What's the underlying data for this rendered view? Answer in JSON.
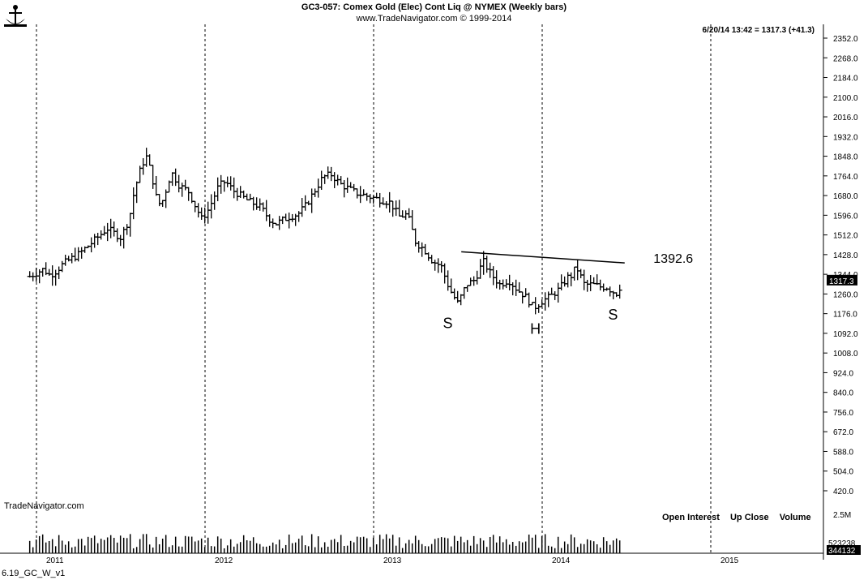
{
  "header": {
    "title": "GC3-057:  Comex Gold (Elec) Cont Liq @ NYMEX  (Weekly bars)",
    "subtitle": "www.TradeNavigator.com © 1999-2014",
    "last_quote": "6/20/14 13:42 = 1317.3 (+41.3)"
  },
  "watermark": "TradeNavigator.com",
  "footer_label": "6.19_GC_W_v1",
  "volume_legend": [
    "Open Interest",
    "Up Close",
    "Volume"
  ],
  "colors": {
    "background": "#ffffff",
    "bars": "#000000",
    "gridline": "#000000"
  },
  "chart_data": {
    "type": "ohlc",
    "timeframe": "Weekly bars",
    "x_axis": {
      "tick_labels": [
        "2011",
        "2012",
        "2013",
        "2014",
        "2015"
      ]
    },
    "y_axis": {
      "position": "right",
      "range": [
        420,
        2352
      ],
      "tick_labels": [
        "2352.0",
        "2268.0",
        "2184.0",
        "2100.0",
        "2016.0",
        "1932.0",
        "1848.0",
        "1764.0",
        "1680.0",
        "1596.0",
        "1512.0",
        "1428.0",
        "1344.0",
        "1260.0",
        "1176.0",
        "1092.0",
        "1008.0",
        "924.0",
        "840.0",
        "756.0",
        "672.0",
        "588.0",
        "504.0",
        "420.0"
      ]
    },
    "last_price_tag": "1317.3",
    "close_path": [
      [
        2010.96,
        1335
      ],
      [
        2011.04,
        1365
      ],
      [
        2011.08,
        1340
      ],
      [
        2011.12,
        1360
      ],
      [
        2011.16,
        1390
      ],
      [
        2011.25,
        1430
      ],
      [
        2011.33,
        1480
      ],
      [
        2011.42,
        1540
      ],
      [
        2011.5,
        1500
      ],
      [
        2011.55,
        1580
      ],
      [
        2011.58,
        1700
      ],
      [
        2011.62,
        1800
      ],
      [
        2011.65,
        1850
      ],
      [
        2011.68,
        1780
      ],
      [
        2011.72,
        1640
      ],
      [
        2011.75,
        1660
      ],
      [
        2011.8,
        1780
      ],
      [
        2011.85,
        1720
      ],
      [
        2011.9,
        1700
      ],
      [
        2011.94,
        1640
      ],
      [
        2011.98,
        1580
      ],
      [
        2012.02,
        1620
      ],
      [
        2012.08,
        1720
      ],
      [
        2012.12,
        1740
      ],
      [
        2012.17,
        1700
      ],
      [
        2012.25,
        1660
      ],
      [
        2012.33,
        1630
      ],
      [
        2012.38,
        1580
      ],
      [
        2012.42,
        1560
      ],
      [
        2012.5,
        1590
      ],
      [
        2012.55,
        1600
      ],
      [
        2012.6,
        1640
      ],
      [
        2012.65,
        1700
      ],
      [
        2012.7,
        1760
      ],
      [
        2012.75,
        1770
      ],
      [
        2012.8,
        1730
      ],
      [
        2012.85,
        1710
      ],
      [
        2012.9,
        1690
      ],
      [
        2012.95,
        1680
      ],
      [
        2013.0,
        1670
      ],
      [
        2013.05,
        1660
      ],
      [
        2013.1,
        1650
      ],
      [
        2013.15,
        1590
      ],
      [
        2013.2,
        1600
      ],
      [
        2013.25,
        1480
      ],
      [
        2013.3,
        1450
      ],
      [
        2013.35,
        1400
      ],
      [
        2013.4,
        1380
      ],
      [
        2013.45,
        1280
      ],
      [
        2013.5,
        1220
      ],
      [
        2013.55,
        1300
      ],
      [
        2013.6,
        1320
      ],
      [
        2013.65,
        1400
      ],
      [
        2013.7,
        1340
      ],
      [
        2013.75,
        1300
      ],
      [
        2013.8,
        1320
      ],
      [
        2013.85,
        1280
      ],
      [
        2013.9,
        1250
      ],
      [
        2013.95,
        1200
      ],
      [
        2014.0,
        1230
      ],
      [
        2014.05,
        1250
      ],
      [
        2014.1,
        1280
      ],
      [
        2014.15,
        1330
      ],
      [
        2014.18,
        1340
      ],
      [
        2014.2,
        1380
      ],
      [
        2014.25,
        1300
      ],
      [
        2014.3,
        1300
      ],
      [
        2014.35,
        1290
      ],
      [
        2014.38,
        1290
      ],
      [
        2014.42,
        1270
      ],
      [
        2014.45,
        1260
      ],
      [
        2014.47,
        1317
      ]
    ],
    "volume_range": [
      0,
      2500000
    ],
    "volume_tick_labels": [
      "2.5M"
    ],
    "volume_last_values": [
      "523238",
      "344132"
    ],
    "annotations": [
      {
        "text": "S",
        "x": 2013.44,
        "y": 1115
      },
      {
        "text": "H",
        "x": 2013.96,
        "y": 1090
      },
      {
        "text": "S",
        "x": 2014.42,
        "y": 1150
      },
      {
        "text": "1392.6",
        "x": 2014.66,
        "y": 1393
      }
    ],
    "trendline": {
      "x0": 2013.52,
      "y0": 1440,
      "x1": 2014.47,
      "y1": 1392.6
    },
    "grid": "vertical dashed at year starts",
    "legend": "none"
  }
}
